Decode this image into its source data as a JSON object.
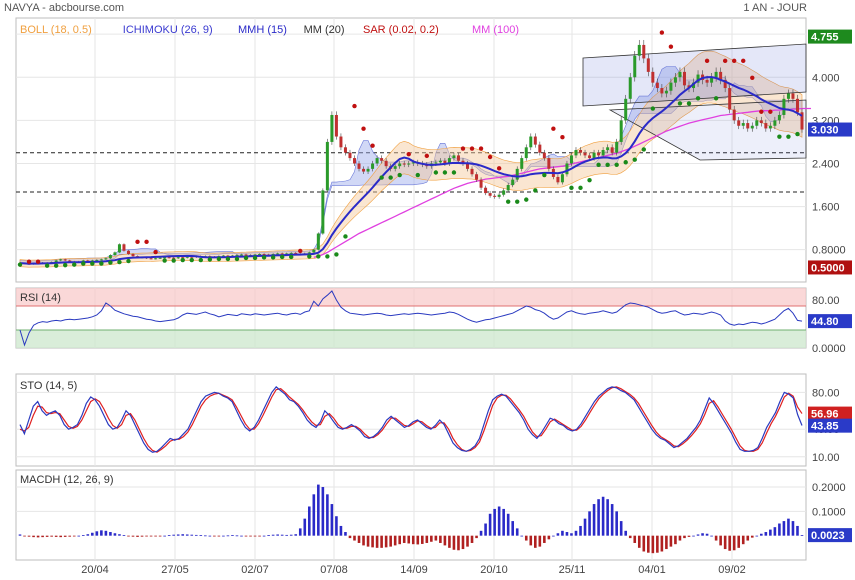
{
  "header": {
    "title": "NAVYA - abcbourse.com",
    "period": "1 AN - JOUR"
  },
  "colors": {
    "boll": "#f0a040",
    "ichimoku": "#3a3ad0",
    "mmh": "#2a2ac8",
    "mm20": "#8a6a1a",
    "sar": "#c01010",
    "mm100": "#e040e0",
    "price": "#1a8a1a",
    "volume": "#22aa22",
    "rsi": "#2a3ac0",
    "sto_k": "#2a3ac0",
    "sto_d": "#e02020",
    "macd": "#2a2ac8",
    "macd_neg": "#b02020",
    "grid": "#e6e6e6"
  },
  "chart_data": [
    {
      "type": "line",
      "name": "price",
      "legend": [
        {
          "label": "BOLL (18, 0.5)",
          "color": "#f0a040"
        },
        {
          "label": "ICHIMOKU (26, 9)",
          "color": "#3a3ad0"
        },
        {
          "label": "MMH (15)",
          "color": "#2a2ac8"
        },
        {
          "label": "MM (20)",
          "color": "#333333"
        },
        {
          "label": "SAR (0.02, 0.2)",
          "color": "#c01010"
        },
        {
          "label": "MM (100)",
          "color": "#e040e0"
        }
      ],
      "ylim": [
        0.2,
        5.1
      ],
      "ytick_labels": [
        "0.8000",
        "1.600",
        "2.400",
        "3.200",
        "4.000",
        "4.800"
      ],
      "ytick_values": [
        0.8,
        1.6,
        2.4,
        3.2,
        4.0,
        4.8
      ],
      "xtick_labels": [
        "20/04",
        "27/05",
        "02/07",
        "07/08",
        "14/09",
        "20/10",
        "25/11",
        "04/01",
        "09/02"
      ],
      "current_price": "3.030",
      "max_label": "4.755",
      "min_label": "0.5000",
      "dashed_levels": [
        2.6,
        1.87
      ],
      "close": [
        0.55,
        0.54,
        0.53,
        0.55,
        0.54,
        0.56,
        0.55,
        0.57,
        0.6,
        0.62,
        0.6,
        0.58,
        0.57,
        0.58,
        0.6,
        0.59,
        0.6,
        0.61,
        0.62,
        0.64,
        0.7,
        0.75,
        0.9,
        0.78,
        0.72,
        0.68,
        0.65,
        0.66,
        0.64,
        0.63,
        0.64,
        0.65,
        0.66,
        0.65,
        0.64,
        0.66,
        0.65,
        0.67,
        0.66,
        0.68,
        0.67,
        0.68,
        0.66,
        0.67,
        0.68,
        0.69,
        0.68,
        0.69,
        0.7,
        0.71,
        0.69,
        0.7,
        0.71,
        0.72,
        0.71,
        0.7,
        0.72,
        0.73,
        0.72,
        0.73,
        0.74,
        0.72,
        0.71,
        0.73,
        0.75,
        0.8,
        1.1,
        1.9,
        2.8,
        3.3,
        2.9,
        2.7,
        2.6,
        2.5,
        2.4,
        2.3,
        2.25,
        2.3,
        2.4,
        2.5,
        2.45,
        2.35,
        2.3,
        2.35,
        2.4,
        2.38,
        2.4,
        2.42,
        2.4,
        2.38,
        2.35,
        2.4,
        2.42,
        2.45,
        2.4,
        2.5,
        2.55,
        2.45,
        2.4,
        2.3,
        2.2,
        2.1,
        1.95,
        1.85,
        1.8,
        1.78,
        1.82,
        1.9,
        2.0,
        2.1,
        2.3,
        2.5,
        2.7,
        2.9,
        2.75,
        2.6,
        2.5,
        2.3,
        2.15,
        2.05,
        2.2,
        2.4,
        2.55,
        2.65,
        2.6,
        2.55,
        2.5,
        2.6,
        2.55,
        2.65,
        2.7,
        2.6,
        2.8,
        3.2,
        3.6,
        4.0,
        4.4,
        4.6,
        4.35,
        4.1,
        3.9,
        3.8,
        3.7,
        3.75,
        3.9,
        4.0,
        4.1,
        3.85,
        3.8,
        3.9,
        4.05,
        3.95,
        3.9,
        4.0,
        4.1,
        3.95,
        3.8,
        3.4,
        3.2,
        3.1,
        3.15,
        3.05,
        3.1,
        3.2,
        3.15,
        3.05,
        3.1,
        3.2,
        3.3,
        3.6,
        3.7,
        3.6,
        3.35,
        3.03
      ],
      "ma100": [
        null,
        null,
        null,
        null,
        null,
        null,
        null,
        null,
        null,
        null,
        null,
        null,
        null,
        null,
        null,
        null,
        null,
        null,
        null,
        null,
        null,
        null,
        null,
        null,
        null,
        null,
        null,
        null,
        null,
        null,
        null,
        null,
        null,
        null,
        null,
        null,
        null,
        null,
        null,
        null,
        null,
        null,
        null,
        null,
        null,
        null,
        null,
        null,
        null,
        null,
        null,
        null,
        null,
        null,
        null,
        null,
        null,
        null,
        null,
        null,
        null,
        null,
        null,
        null,
        null,
        0.66,
        0.68,
        0.71,
        0.75,
        0.8,
        0.85,
        0.9,
        0.95,
        1.0,
        1.05,
        1.1,
        1.14,
        1.18,
        1.22,
        1.26,
        1.3,
        1.34,
        1.38,
        1.42,
        1.46,
        1.5,
        1.54,
        1.58,
        1.62,
        1.66,
        1.7,
        1.74,
        1.78,
        1.82,
        1.86,
        1.9,
        1.94,
        1.97,
        2.0,
        2.03,
        2.05,
        2.07,
        2.09,
        2.11,
        2.12,
        2.13,
        2.14,
        2.15,
        2.16,
        2.18,
        2.2,
        2.22,
        2.24,
        2.26,
        2.28,
        2.3,
        2.31,
        2.32,
        2.33,
        2.34,
        2.35,
        2.37,
        2.39,
        2.41,
        2.43,
        2.45,
        2.47,
        2.49,
        2.51,
        2.53,
        2.55,
        2.57,
        2.59,
        2.62,
        2.65,
        2.68,
        2.72,
        2.76,
        2.8,
        2.84,
        2.88,
        2.92,
        2.96,
        3.0,
        3.03,
        3.06,
        3.09,
        3.12,
        3.15,
        3.17,
        3.19,
        3.21,
        3.23,
        3.25,
        3.27,
        3.29,
        3.3,
        3.31,
        3.32,
        3.33,
        3.34,
        3.35,
        3.36,
        3.37,
        3.38,
        3.38,
        3.38,
        3.39,
        3.39,
        3.4,
        3.4,
        3.41,
        3.41,
        3.42,
        3.42,
        3.42
      ]
    },
    {
      "type": "line",
      "name": "RSI",
      "legend": [
        {
          "label": "RSI (14)",
          "color": "#2a3ac0"
        }
      ],
      "ylim": [
        0,
        100
      ],
      "ytick_labels": [
        "0.0000",
        "40.00",
        "80.00"
      ],
      "ytick_values": [
        0,
        40,
        80
      ],
      "zones": [
        70,
        30
      ],
      "current": "44.80",
      "values": [
        30,
        5,
        25,
        38,
        42,
        44,
        43,
        45,
        46,
        45,
        47,
        48,
        47,
        48,
        49,
        50,
        52,
        55,
        62,
        75,
        70,
        63,
        60,
        57,
        55,
        53,
        52,
        50,
        48,
        47,
        45,
        44,
        45,
        46,
        47,
        50,
        55,
        58,
        57,
        56,
        58,
        60,
        57,
        55,
        52,
        54,
        56,
        55,
        54,
        57,
        56,
        55,
        57,
        56,
        55,
        56,
        57,
        58,
        56,
        55,
        57,
        58,
        56,
        60,
        62,
        78,
        70,
        82,
        88,
        95,
        80,
        68,
        62,
        58,
        57,
        56,
        55,
        56,
        57,
        58,
        57,
        55,
        54,
        55,
        56,
        57,
        56,
        57,
        58,
        57,
        56,
        55,
        56,
        57,
        58,
        60,
        59,
        56,
        52,
        48,
        45,
        43,
        45,
        47,
        48,
        50,
        52,
        54,
        56,
        58,
        62,
        66,
        70,
        68,
        64,
        62,
        58,
        52,
        48,
        50,
        55,
        60,
        62,
        59,
        57,
        56,
        58,
        59,
        60,
        62,
        60,
        58,
        60,
        66,
        72,
        75,
        74,
        72,
        70,
        68,
        64,
        60,
        58,
        59,
        61,
        62,
        58,
        55,
        56,
        58,
        57,
        56,
        58,
        60,
        58,
        55,
        45,
        40,
        38,
        40,
        39,
        41,
        43,
        42,
        40,
        42,
        45,
        48,
        55,
        62,
        66,
        58,
        46,
        44.8
      ]
    },
    {
      "type": "line",
      "name": "STO",
      "legend": [
        {
          "label": "STO (14, 5)",
          "color": "#2a3ac0"
        }
      ],
      "ylim": [
        0,
        100
      ],
      "ytick_labels": [
        "10.00",
        "40.00",
        "80.00"
      ],
      "ytick_values": [
        10,
        40,
        80
      ],
      "current_d": "56.96",
      "current_k": "43.85",
      "k": [
        45,
        35,
        50,
        65,
        70,
        60,
        55,
        58,
        60,
        55,
        45,
        40,
        42,
        45,
        55,
        68,
        75,
        72,
        65,
        55,
        45,
        40,
        42,
        50,
        60,
        55,
        45,
        35,
        25,
        18,
        15,
        16,
        20,
        25,
        30,
        28,
        30,
        35,
        40,
        50,
        60,
        70,
        76,
        78,
        80,
        79,
        76,
        74,
        70,
        60,
        50,
        42,
        38,
        42,
        50,
        60,
        70,
        80,
        86,
        82,
        78,
        72,
        70,
        65,
        58,
        50,
        45,
        42,
        48,
        60,
        55,
        48,
        42,
        40,
        42,
        45,
        42,
        38,
        32,
        30,
        32,
        36,
        42,
        50,
        54,
        50,
        46,
        42,
        44,
        48,
        50,
        46,
        42,
        40,
        44,
        50,
        45,
        35,
        25,
        20,
        17,
        16,
        18,
        22,
        30,
        45,
        60,
        72,
        76,
        78,
        76,
        70,
        64,
        58,
        50,
        40,
        34,
        30,
        36,
        44,
        52,
        50,
        46,
        44,
        40,
        38,
        40,
        46,
        54,
        62,
        70,
        76,
        80,
        84,
        86,
        85,
        82,
        80,
        76,
        72,
        64,
        56,
        48,
        40,
        34,
        30,
        28,
        24,
        20,
        22,
        26,
        30,
        36,
        42,
        50,
        62,
        74,
        68,
        60,
        52,
        44,
        36,
        26,
        18,
        16,
        16,
        17,
        20,
        30,
        42,
        50,
        58,
        70,
        80,
        78,
        74,
        56,
        44
      ],
      "d": [
        40,
        38,
        42,
        55,
        65,
        64,
        58,
        57,
        58,
        57,
        50,
        43,
        41,
        43,
        50,
        60,
        70,
        73,
        70,
        62,
        52,
        44,
        41,
        45,
        55,
        57,
        50,
        40,
        30,
        22,
        17,
        15,
        18,
        22,
        27,
        29,
        29,
        32,
        37,
        45,
        55,
        65,
        72,
        76,
        78,
        79,
        77,
        75,
        72,
        64,
        55,
        46,
        40,
        40,
        46,
        55,
        65,
        75,
        83,
        84,
        80,
        75,
        71,
        67,
        61,
        54,
        48,
        44,
        45,
        54,
        57,
        52,
        45,
        41,
        41,
        43,
        43,
        40,
        35,
        31,
        31,
        34,
        39,
        46,
        52,
        52,
        48,
        44,
        43,
        46,
        49,
        48,
        44,
        41,
        42,
        47,
        47,
        40,
        30,
        23,
        18,
        16,
        17,
        20,
        26,
        38,
        52,
        66,
        74,
        77,
        77,
        73,
        67,
        61,
        54,
        45,
        37,
        32,
        33,
        40,
        48,
        51,
        48,
        45,
        42,
        39,
        39,
        43,
        50,
        58,
        66,
        73,
        78,
        82,
        85,
        86,
        84,
        81,
        78,
        74,
        68,
        60,
        52,
        44,
        37,
        32,
        29,
        26,
        22,
        21,
        24,
        28,
        33,
        39,
        46,
        56,
        68,
        71,
        64,
        56,
        48,
        40,
        31,
        22,
        17,
        16,
        16,
        18,
        25,
        36,
        46,
        54,
        64,
        75,
        79,
        76,
        64,
        57
      ]
    },
    {
      "type": "bar",
      "name": "MACDH",
      "legend": [
        {
          "label": "MACDH (12, 26, 9)",
          "color": "#2a2ac8"
        }
      ],
      "ylim": [
        -0.1,
        0.27
      ],
      "ytick_labels": [
        "0.2000",
        "0.1000"
      ],
      "ytick_values": [
        0.2,
        0.1
      ],
      "current": "0.0023",
      "values": [
        0.005,
        -0.002,
        -0.004,
        -0.006,
        -0.007,
        -0.006,
        -0.005,
        -0.004,
        -0.005,
        -0.006,
        -0.005,
        -0.004,
        -0.002,
        0.0,
        0.002,
        0.006,
        0.012,
        0.018,
        0.022,
        0.02,
        0.015,
        0.01,
        0.006,
        0.002,
        -0.002,
        -0.004,
        -0.005,
        -0.004,
        -0.003,
        -0.002,
        -0.002,
        -0.001,
        0.0,
        0.002,
        0.004,
        0.005,
        0.006,
        0.005,
        0.004,
        0.003,
        0.002,
        0.001,
        0.0,
        -0.001,
        -0.001,
        0.0,
        0.001,
        0.002,
        0.001,
        0.0,
        -0.002,
        -0.003,
        -0.002,
        -0.001,
        0.0,
        0.002,
        0.004,
        0.005,
        0.004,
        0.003,
        0.004,
        0.006,
        0.03,
        0.07,
        0.12,
        0.17,
        0.21,
        0.2,
        0.17,
        0.13,
        0.08,
        0.04,
        0.015,
        -0.01,
        -0.02,
        -0.03,
        -0.04,
        -0.045,
        -0.048,
        -0.05,
        -0.05,
        -0.048,
        -0.045,
        -0.04,
        -0.035,
        -0.03,
        -0.032,
        -0.035,
        -0.036,
        -0.034,
        -0.03,
        -0.025,
        -0.02,
        -0.03,
        -0.04,
        -0.05,
        -0.058,
        -0.06,
        -0.055,
        -0.045,
        -0.03,
        -0.01,
        0.02,
        0.05,
        0.09,
        0.11,
        0.12,
        0.11,
        0.09,
        0.06,
        0.03,
        0.0,
        -0.02,
        -0.04,
        -0.05,
        -0.045,
        -0.03,
        -0.015,
        0.0,
        0.01,
        0.02,
        0.015,
        0.01,
        0.02,
        0.04,
        0.07,
        0.1,
        0.13,
        0.15,
        0.16,
        0.15,
        0.13,
        0.1,
        0.06,
        0.02,
        -0.01,
        -0.03,
        -0.05,
        -0.065,
        -0.07,
        -0.072,
        -0.07,
        -0.065,
        -0.055,
        -0.045,
        -0.035,
        -0.02,
        -0.01,
        -0.005,
        0.0,
        0.005,
        0.01,
        0.008,
        0.0,
        -0.02,
        -0.04,
        -0.055,
        -0.062,
        -0.06,
        -0.05,
        -0.035,
        -0.02,
        -0.008,
        0.0,
        0.008,
        0.015,
        0.025,
        0.035,
        0.05,
        0.06,
        0.07,
        0.06,
        0.04,
        0.0023
      ]
    }
  ]
}
